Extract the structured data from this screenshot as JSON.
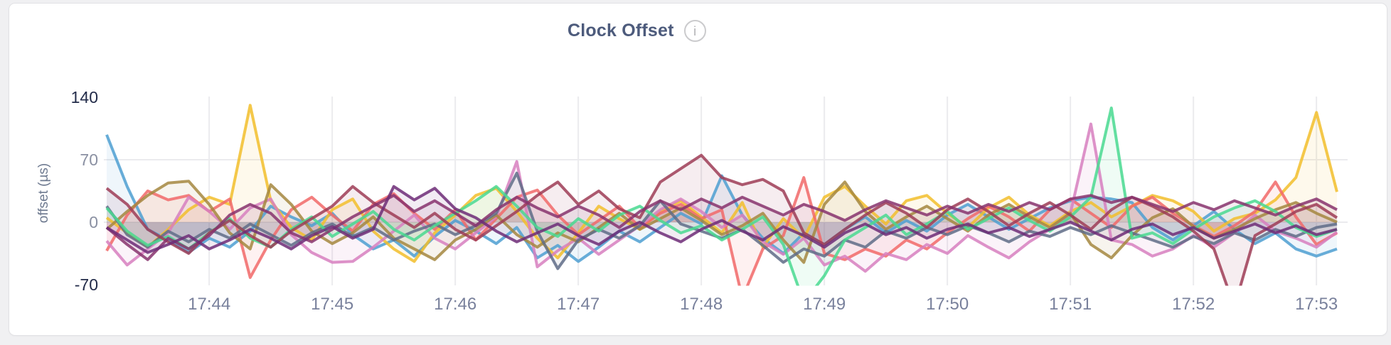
{
  "page": {
    "background": "#f0f0f2",
    "card_background": "#ffffff"
  },
  "header": {
    "title": "Clock Offset",
    "info_icon_glyph": "i"
  },
  "chart_data": {
    "type": "line",
    "title": "Clock Offset",
    "xlabel": "",
    "ylabel": "offset (µs)",
    "ylim": [
      -70,
      140
    ],
    "grid": true,
    "legend": "none",
    "h_grid_values": [
      70,
      0
    ],
    "y_ticks": [
      {
        "label": "140",
        "value": 140,
        "strong": true
      },
      {
        "label": "70",
        "value": 70,
        "strong": false
      },
      {
        "label": "0",
        "value": 0,
        "strong": false
      },
      {
        "label": "-70",
        "value": -70,
        "strong": true
      }
    ],
    "x_ticks": [
      "17:44",
      "17:45",
      "17:46",
      "17:47",
      "17:48",
      "17:49",
      "17:50",
      "17:51",
      "17:52",
      "17:53"
    ],
    "first_tick_index": 5,
    "points_per_tick": 6,
    "interval_seconds": 10,
    "colors": {
      "title": "#4d5b7c",
      "tick_strong": "#222b49",
      "tick_minor": "#8a90a2",
      "x_tick": "#79819c",
      "grid": "#ebebee"
    },
    "series": [
      {
        "name": "series-1",
        "color": "#4E9FD1",
        "values": [
          98,
          40,
          -8,
          -20,
          -34,
          -18,
          -28,
          -10,
          18,
          6,
          -4,
          10,
          -14,
          -30,
          -20,
          -38,
          -16,
          2,
          -10,
          -24,
          -6,
          -40,
          -26,
          -44,
          -28,
          -10,
          -22,
          -6,
          10,
          -2,
          52,
          8,
          -18,
          -35,
          -12,
          -25,
          -8,
          6,
          -12,
          2,
          -10,
          8,
          20,
          6,
          -8,
          4,
          16,
          24,
          28,
          26,
          22,
          -6,
          -20,
          -4,
          12,
          -8,
          -24,
          -12,
          -30,
          -38,
          -30
        ]
      },
      {
        "name": "series-2",
        "color": "#F2BE2C",
        "values": [
          5,
          -12,
          -28,
          -8,
          14,
          28,
          20,
          131,
          24,
          -6,
          -20,
          14,
          26,
          -10,
          -30,
          -44,
          -12,
          8,
          30,
          38,
          12,
          -18,
          -40,
          -12,
          18,
          4,
          -8,
          12,
          24,
          6,
          -12,
          22,
          -28,
          4,
          -18,
          28,
          40,
          18,
          -2,
          24,
          30,
          10,
          -6,
          16,
          28,
          8,
          -4,
          12,
          22,
          6,
          18,
          30,
          24,
          12,
          -10,
          4,
          10,
          25,
          50,
          123,
          34
        ]
      },
      {
        "name": "series-3",
        "color": "#F16969",
        "values": [
          -32,
          8,
          35,
          25,
          30,
          12,
          26,
          -62,
          -20,
          14,
          28,
          8,
          -10,
          20,
          32,
          10,
          -8,
          14,
          -20,
          4,
          28,
          36,
          8,
          -14,
          2,
          18,
          -6,
          10,
          20,
          4,
          14,
          -85,
          -30,
          -15,
          50,
          -35,
          -42,
          -30,
          -38,
          -20,
          -30,
          -12,
          4,
          18,
          6,
          -10,
          14,
          26,
          10,
          -6,
          18,
          28,
          10,
          -4,
          -16,
          -4,
          12,
          45,
          6,
          -25,
          -12
        ]
      },
      {
        "name": "series-4",
        "color": "#D77FBF",
        "values": [
          -21,
          -48,
          -30,
          -12,
          28,
          12,
          -8,
          16,
          26,
          -14,
          -34,
          -45,
          -44,
          -28,
          -10,
          8,
          -18,
          -30,
          -12,
          6,
          68,
          -50,
          -32,
          -18,
          -36,
          -20,
          -4,
          14,
          26,
          12,
          -6,
          8,
          -22,
          -36,
          -18,
          -48,
          -38,
          -55,
          -35,
          -42,
          -25,
          -35,
          -15,
          -28,
          -40,
          -22,
          -8,
          10,
          110,
          -20,
          -25,
          -38,
          -30,
          -15,
          -28,
          -12,
          8,
          -10,
          -18,
          -28,
          -11
        ]
      },
      {
        "name": "series-5",
        "color": "#A5873F",
        "values": [
          -8,
          12,
          30,
          44,
          46,
          20,
          -12,
          -30,
          42,
          20,
          -10,
          -24,
          -12,
          6,
          -18,
          -30,
          -42,
          -20,
          -8,
          8,
          -14,
          -28,
          -12,
          -22,
          -6,
          10,
          -8,
          4,
          16,
          2,
          -14,
          -4,
          10,
          -20,
          -45,
          20,
          45,
          12,
          -8,
          6,
          18,
          4,
          -10,
          8,
          20,
          6,
          -6,
          10,
          -25,
          -40,
          -15,
          5,
          15,
          -5,
          -18,
          -8,
          4,
          14,
          22,
          10,
          0
        ]
      },
      {
        "name": "series-6",
        "color": "#5F6C87",
        "values": [
          18,
          -14,
          -28,
          -10,
          -22,
          -8,
          -18,
          -2,
          -14,
          -26,
          -12,
          -2,
          -16,
          -6,
          -20,
          -10,
          -2,
          -14,
          -4,
          10,
          55,
          -10,
          -52,
          -20,
          -8,
          -18,
          -4,
          24,
          -2,
          -10,
          -18,
          -8,
          -26,
          -45,
          -30,
          -38,
          -20,
          -28,
          -10,
          -18,
          -6,
          -14,
          -4,
          -12,
          -22,
          -10,
          -16,
          -6,
          -14,
          -4,
          -12,
          -20,
          -28,
          -16,
          -24,
          -12,
          -20,
          -8,
          -16,
          -6,
          -2
        ]
      },
      {
        "name": "series-7",
        "color": "#49D990",
        "values": [
          16,
          -10,
          -26,
          -16,
          -30,
          -12,
          4,
          -18,
          -28,
          -8,
          6,
          -16,
          -2,
          12,
          -8,
          -20,
          -4,
          10,
          24,
          40,
          18,
          -6,
          -16,
          4,
          -10,
          8,
          18,
          2,
          -12,
          -4,
          -20,
          -8,
          6,
          -25,
          -90,
          -60,
          -20,
          -6,
          8,
          -14,
          -2,
          12,
          -8,
          4,
          16,
          2,
          -10,
          6,
          28,
          128,
          -18,
          -12,
          -24,
          -8,
          6,
          16,
          24,
          12,
          -6,
          -16,
          -8
        ]
      },
      {
        "name": "series-8",
        "color": "#9D3C56",
        "values": [
          38,
          20,
          -8,
          -22,
          -35,
          -12,
          2,
          -15,
          -28,
          -10,
          4,
          18,
          40,
          22,
          8,
          -6,
          10,
          -8,
          -20,
          -4,
          12,
          30,
          45,
          20,
          35,
          15,
          5,
          45,
          60,
          75,
          50,
          42,
          48,
          35,
          -12,
          -25,
          -8,
          8,
          22,
          10,
          -6,
          14,
          26,
          12,
          -4,
          10,
          22,
          8,
          -8,
          14,
          28,
          18,
          6,
          -10,
          -30,
          -95,
          -15,
          -2,
          12,
          20,
          5
        ]
      },
      {
        "name": "series-9",
        "color": "#87326D",
        "values": [
          -6,
          -25,
          -42,
          -18,
          -30,
          -15,
          8,
          20,
          10,
          -12,
          -22,
          -8,
          6,
          18,
          30,
          12,
          24,
          10,
          -4,
          14,
          28,
          16,
          6,
          18,
          8,
          -6,
          12,
          24,
          14,
          26,
          16,
          28,
          18,
          8,
          20,
          12,
          2,
          14,
          24,
          16,
          8,
          18,
          10,
          20,
          12,
          22,
          14,
          26,
          30,
          22,
          28,
          20,
          12,
          22,
          14,
          24,
          16,
          8,
          18,
          26,
          14
        ]
      },
      {
        "name": "series-10",
        "color": "#6D2B77",
        "values": [
          -6,
          -20,
          -34,
          -25,
          -15,
          -30,
          -20,
          -8,
          -18,
          -30,
          -15,
          -5,
          -18,
          -8,
          40,
          25,
          38,
          15,
          5,
          -10,
          -22,
          -12,
          -2,
          -15,
          -25,
          -10,
          0,
          -12,
          -22,
          -8,
          2,
          -10,
          -20,
          -5,
          -15,
          -28,
          -12,
          -2,
          -14,
          -6,
          -18,
          -8,
          -2,
          -12,
          -6,
          -16,
          -8,
          0,
          -10,
          -20,
          -8,
          -2,
          -14,
          -6,
          -18,
          -10,
          -2,
          -12,
          -4,
          -14,
          -8
        ]
      }
    ]
  }
}
